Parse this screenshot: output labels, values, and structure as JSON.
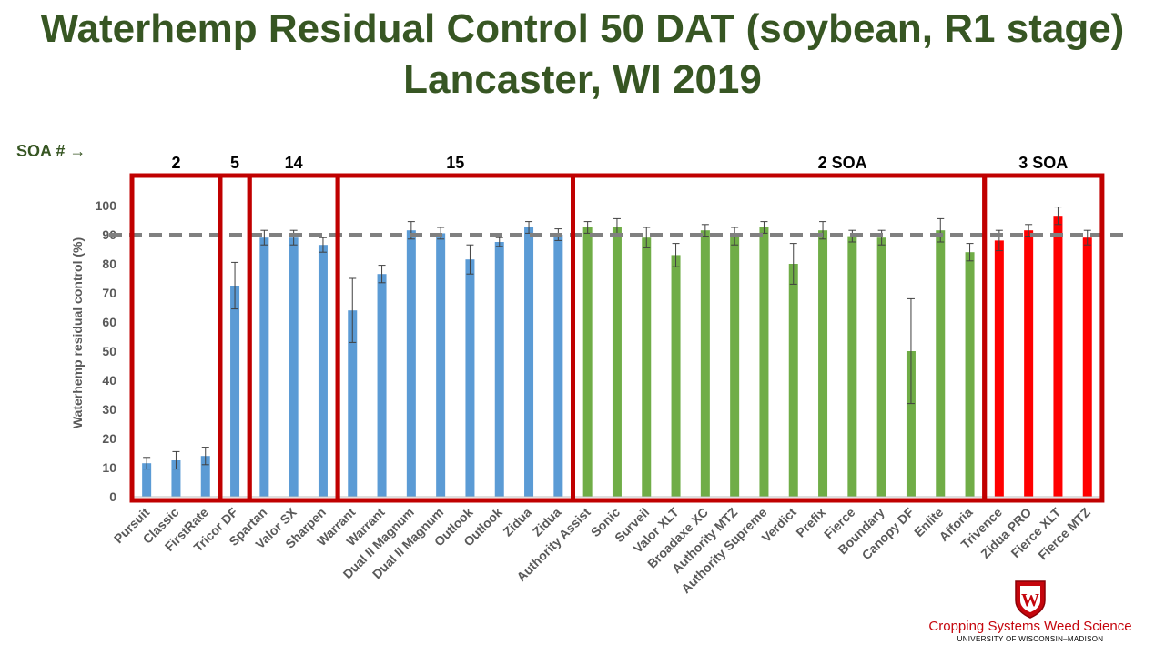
{
  "title_line1": "Waterhemp Residual Control 50 DAT (soybean, R1 stage)",
  "title_line2": "Lancaster, WI 2019",
  "soa_label": "SOA # →",
  "logo": {
    "text": "Cropping Systems Weed Science",
    "subtext": "UNIVERSITY OF WISCONSIN–MADISON",
    "crest_letter": "W"
  },
  "colors": {
    "title": "#375623",
    "box": "#c00000",
    "blue": "#5b9bd5",
    "green": "#70ad47",
    "red": "#ff0000",
    "refline": "#808080"
  },
  "groups": [
    {
      "label": "2",
      "start": 0,
      "end": 2
    },
    {
      "label": "5",
      "start": 3,
      "end": 3
    },
    {
      "label": "14",
      "start": 4,
      "end": 6
    },
    {
      "label": "15",
      "start": 7,
      "end": 14
    },
    {
      "label": "2 SOA",
      "start": 15,
      "end": 28
    },
    {
      "label": "3 SOA",
      "start": 29,
      "end": 32
    }
  ],
  "chart_data": {
    "type": "bar",
    "ylabel": "Waterhemp residual control (%)",
    "ylim": [
      0,
      100
    ],
    "yticks": [
      0,
      10,
      20,
      30,
      40,
      50,
      60,
      70,
      80,
      90,
      100
    ],
    "reference_line": 90,
    "grid": false,
    "categories": [
      "Pursuit",
      "Classic",
      "FirstRate",
      "Tricor DF",
      "Spartan",
      "Valor SX",
      "Sharpen",
      "Warrant",
      "Warrant",
      "Dual II Magnum",
      "Dual II Magnum",
      "Outlook",
      "Outlook",
      "Zidua",
      "Zidua",
      "Authority Assist",
      "Sonic",
      "Surveil",
      "Valor XLT",
      "Broadaxe XC",
      "Authority MTZ",
      "Authority Supreme",
      "Verdict",
      "Prefix",
      "Fierce",
      "Boundary",
      "Canopy DF",
      "Enlite",
      "Afforia",
      "Trivence",
      "Zidua PRO",
      "Fierce XLT",
      "Fierce MTZ"
    ],
    "values": [
      11.5,
      12.5,
      14,
      72.5,
      89,
      89,
      86.5,
      64,
      76.5,
      91.5,
      90.5,
      81.5,
      87.5,
      92.5,
      90,
      92.5,
      92.5,
      89,
      83,
      91.5,
      89.5,
      92.5,
      80,
      91.5,
      89.5,
      89,
      50,
      91.5,
      84,
      88,
      91.5,
      96.5,
      89
    ],
    "errors": [
      2,
      3,
      3,
      8,
      2.5,
      2.5,
      2.5,
      11,
      3,
      3,
      2,
      5,
      1.5,
      2,
      2,
      2,
      3,
      3.5,
      4,
      2,
      3,
      2,
      7,
      3,
      2,
      2.5,
      18,
      4,
      3,
      3.5,
      2,
      3,
      2.5
    ],
    "bar_colors": [
      "blue",
      "blue",
      "blue",
      "blue",
      "blue",
      "blue",
      "blue",
      "blue",
      "blue",
      "blue",
      "blue",
      "blue",
      "blue",
      "blue",
      "blue",
      "green",
      "green",
      "green",
      "green",
      "green",
      "green",
      "green",
      "green",
      "green",
      "green",
      "green",
      "green",
      "green",
      "green",
      "red",
      "red",
      "red",
      "red"
    ]
  }
}
